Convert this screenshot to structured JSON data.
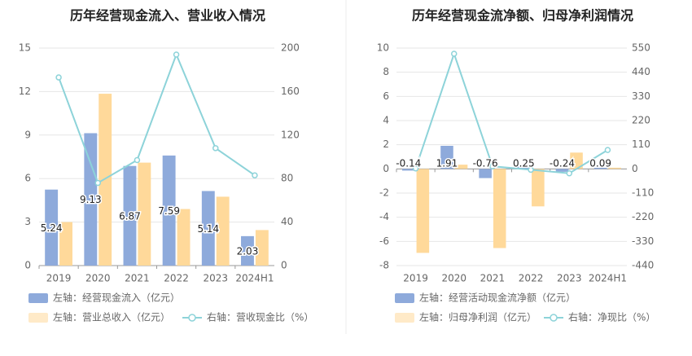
{
  "chart_data": [
    {
      "type": "bar+line",
      "title": "历年经营现金流入、营业收入情况",
      "categories": [
        "2019",
        "2020",
        "2021",
        "2022",
        "2023",
        "2024H1"
      ],
      "series": [
        {
          "name": "左轴：经营现金流入（亿元）",
          "type": "bar",
          "axis": "left",
          "color": "#8eaadb",
          "values": [
            5.24,
            9.13,
            6.87,
            7.59,
            5.14,
            2.03
          ],
          "labels": [
            "5.24",
            "9.13",
            "6.87",
            "7.59",
            "5.14",
            "2.03"
          ]
        },
        {
          "name": "左轴：营业总收入（亿元）",
          "type": "bar",
          "axis": "left",
          "color": "#ffd99a",
          "values": [
            3.0,
            11.85,
            7.1,
            3.9,
            4.75,
            2.45
          ]
        },
        {
          "name": "右轴：营收现金比（%）",
          "type": "line",
          "axis": "right",
          "color": "#8dd3d9",
          "values": [
            173,
            76,
            97,
            194,
            108,
            83
          ]
        }
      ],
      "left_axis": {
        "min": 0,
        "max": 15,
        "ticks": [
          "0",
          "3",
          "6",
          "9",
          "12",
          "15"
        ]
      },
      "right_axis": {
        "min": 0,
        "max": 200,
        "ticks": [
          "0",
          "40",
          "80",
          "120",
          "160",
          "200"
        ]
      },
      "grid": true,
      "legend_position": "bottom-left"
    },
    {
      "type": "bar+line",
      "title": "历年经营现金流净额、归母净利润情况",
      "categories": [
        "2019",
        "2020",
        "2021",
        "2022",
        "2023",
        "2024H1"
      ],
      "series": [
        {
          "name": "左轴：经营活动现金流净额（亿元）",
          "type": "bar",
          "axis": "left",
          "color": "#8eaadb",
          "values": [
            -0.14,
            1.91,
            -0.76,
            0.25,
            -0.24,
            0.09
          ],
          "labels": [
            "-0.14",
            "1.91",
            "-0.76",
            "0.25",
            "-0.24",
            "0.09"
          ]
        },
        {
          "name": "左轴：归母净利润（亿元）",
          "type": "bar",
          "axis": "left",
          "color": "#ffd99a",
          "values": [
            -6.95,
            0.35,
            -6.55,
            -3.1,
            1.35,
            0.1
          ]
        },
        {
          "name": "右轴：净现比（%）",
          "type": "line",
          "axis": "right",
          "color": "#8dd3d9",
          "values": [
            2,
            524,
            12,
            -4,
            -20,
            86
          ]
        }
      ],
      "left_axis": {
        "min": -8,
        "max": 10,
        "ticks": [
          "-8",
          "-6",
          "-4",
          "-2",
          "0",
          "2",
          "4",
          "6",
          "8",
          "10"
        ]
      },
      "right_axis": {
        "min": -440,
        "max": 550,
        "ticks": [
          "-440",
          "-330",
          "-220",
          "-110",
          "0",
          "110",
          "220",
          "330",
          "440",
          "550"
        ]
      },
      "grid": true,
      "legend_position": "bottom-left"
    }
  ]
}
